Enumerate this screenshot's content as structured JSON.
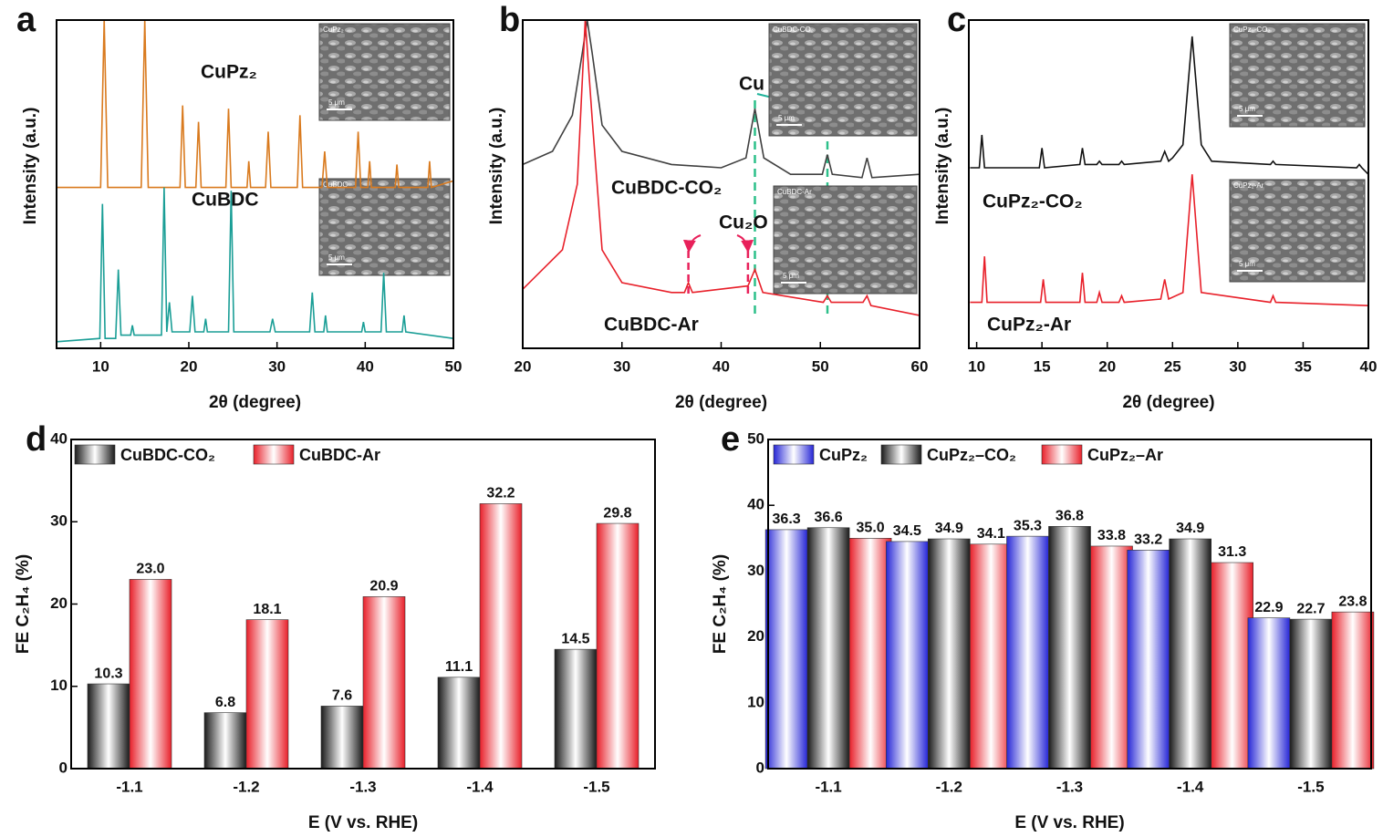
{
  "chart_data": [
    {
      "type": "line",
      "panel": "a",
      "xlabel": "2θ (degree)",
      "ylabel": "Intensity (a.u.)",
      "xlim": [
        5,
        50
      ],
      "xticks": [
        10,
        20,
        30,
        40,
        50
      ],
      "ylim": [
        0,
        100
      ],
      "series": [
        {
          "name": "CuPz₂",
          "color": "#d97a1e",
          "x": [
            5,
            10.0,
            10.4,
            10.8,
            14.6,
            15.0,
            15.4,
            19.0,
            19.3,
            19.6,
            20.8,
            21.1,
            21.4,
            24.2,
            24.5,
            24.8,
            26.6,
            26.8,
            27.0,
            28.7,
            29.0,
            29.3,
            32.3,
            32.6,
            32.9,
            35.1,
            35.4,
            35.7,
            38.9,
            39.2,
            39.5,
            40.3,
            40.5,
            40.7,
            43.4,
            43.6,
            43.8,
            47.1,
            47.3,
            47.5,
            50
          ],
          "values": [
            49,
            49,
            100,
            49,
            49,
            100,
            49,
            49,
            74,
            49,
            49,
            69,
            49,
            49,
            73,
            49,
            49,
            57,
            49,
            49,
            66,
            49,
            49,
            71,
            49,
            49,
            60,
            49,
            49,
            66,
            49,
            49,
            57,
            49,
            49,
            56,
            49,
            49,
            57,
            49,
            51
          ]
        },
        {
          "name": "CuBDC",
          "color": "#1a9e96",
          "x": [
            5,
            9.9,
            10.2,
            10.5,
            11.7,
            12.0,
            12.3,
            13.4,
            13.6,
            13.8,
            16.9,
            17.2,
            17.5,
            17.8,
            18.1,
            20.1,
            20.4,
            20.7,
            21.7,
            21.9,
            22.1,
            24.5,
            24.8,
            25.1,
            29.2,
            29.5,
            29.8,
            33.7,
            34.0,
            34.3,
            35.3,
            35.5,
            35.7,
            39.6,
            39.8,
            40.0,
            41.8,
            42.1,
            42.4,
            44.2,
            44.4,
            44.6,
            50
          ],
          "values": [
            2,
            3,
            44,
            3,
            3,
            24,
            4,
            4,
            7,
            4,
            4,
            49,
            5,
            14,
            5,
            5,
            16,
            5,
            5,
            9,
            5,
            5,
            48,
            5,
            5,
            9,
            5,
            5,
            17,
            5,
            5,
            10,
            5,
            5,
            8,
            5,
            5,
            23,
            5,
            5,
            10,
            5,
            3
          ]
        }
      ],
      "insets": [
        {
          "label": "CuPz₂",
          "scale": "5 μm"
        },
        {
          "label": "CuBDC",
          "scale": "5 μm"
        }
      ]
    },
    {
      "type": "line",
      "panel": "b",
      "xlabel": "2θ (degree)",
      "ylabel": "Intensity (a.u.)",
      "xlim": [
        20,
        60
      ],
      "xticks": [
        20,
        30,
        40,
        50,
        60
      ],
      "ylim": [
        0,
        100
      ],
      "series": [
        {
          "name": "CuBDC-CO₂",
          "color": "#404040",
          "x": [
            20,
            23,
            25,
            26,
            26.5,
            27,
            28,
            30,
            35,
            40,
            42.5,
            43.4,
            44.3,
            47,
            50.2,
            50.7,
            51.2,
            54.2,
            54.7,
            55.2,
            60
          ],
          "values": [
            56,
            60,
            71,
            90,
            100,
            90,
            68,
            60,
            56,
            55,
            58,
            73,
            58,
            53,
            53,
            59,
            53,
            52,
            58,
            52,
            53
          ]
        },
        {
          "name": "CuBDC-Ar",
          "color": "#e8202a",
          "x": [
            20,
            24,
            25.5,
            26.3,
            27,
            28,
            30,
            35,
            36.3,
            36.7,
            37.1,
            42.7,
            43.4,
            44.2,
            50.3,
            50.7,
            51.1,
            54.3,
            54.7,
            55.1,
            60
          ],
          "values": [
            18,
            30,
            50,
            100,
            70,
            30,
            20,
            17,
            17,
            20,
            17,
            19,
            24,
            17,
            14,
            16,
            14,
            14,
            16,
            13,
            10
          ]
        }
      ],
      "annotations": [
        {
          "text": "Cu",
          "color": "#1fb39a"
        },
        {
          "text": "Cu₂O",
          "color": "#e8205a"
        }
      ],
      "insets": [
        {
          "label": "CuBDC-CO₂",
          "scale": "5 μm"
        },
        {
          "label": "CuBDC-Ar",
          "scale": "5 μm"
        }
      ]
    },
    {
      "type": "line",
      "panel": "c",
      "xlabel": "2θ (degree)",
      "ylabel": "Intensity (a.u.)",
      "xlim": [
        9.4,
        40
      ],
      "xticks": [
        10,
        15,
        20,
        25,
        30,
        35,
        40
      ],
      "ylim": [
        0,
        100
      ],
      "series": [
        {
          "name": "CuPz₂-CO₂",
          "color": "#111111",
          "x": [
            9.5,
            10.2,
            10.4,
            10.6,
            14.8,
            15.0,
            15.2,
            17.9,
            18.1,
            18.3,
            19.2,
            19.4,
            19.6,
            20.9,
            21.1,
            21.3,
            24.1,
            24.4,
            24.7,
            25.0,
            25.8,
            26.5,
            27.2,
            28,
            32.5,
            32.7,
            32.9,
            39.1,
            39.3,
            39.5,
            40
          ],
          "values": [
            55,
            55,
            65,
            55,
            55,
            61,
            55,
            56,
            61,
            56,
            56,
            57,
            56,
            56,
            57,
            56,
            57,
            60,
            57,
            58,
            62,
            95,
            62,
            57,
            56,
            57,
            56,
            55,
            56,
            55,
            53
          ]
        },
        {
          "name": "CuPz₂-Ar",
          "color": "#e8202a",
          "x": [
            9.5,
            10.4,
            10.6,
            10.8,
            14.9,
            15.1,
            15.3,
            17.9,
            18.1,
            18.3,
            19.2,
            19.4,
            19.6,
            20.9,
            21.1,
            21.3,
            24.1,
            24.4,
            24.7,
            25.8,
            26.5,
            27.2,
            32.5,
            32.7,
            32.9,
            40
          ],
          "values": [
            14,
            14,
            28,
            14,
            14,
            21,
            14,
            14,
            23,
            14,
            14,
            17,
            14,
            14,
            16,
            14,
            15,
            21,
            15,
            17,
            53,
            17,
            14,
            16,
            14,
            13
          ]
        }
      ],
      "insets": [
        {
          "label": "CuPz₂-CO₂",
          "scale": "5 μm"
        },
        {
          "label": "CuPz₂-Ar",
          "scale": "5 μm"
        }
      ]
    },
    {
      "type": "bar",
      "panel": "d",
      "xlabel": "E (V vs. RHE)",
      "ylabel": "FE C₂H₄ (%)",
      "categories": [
        "-1.1",
        "-1.2",
        "-1.3",
        "-1.4",
        "-1.5"
      ],
      "ylim": [
        0,
        40
      ],
      "yticks": [
        0,
        10,
        20,
        30,
        40
      ],
      "legend": "top-left",
      "series": [
        {
          "name": "CuBDC-CO₂",
          "color": "#1a1a1a",
          "values": [
            10.3,
            6.8,
            7.6,
            11.1,
            14.5
          ],
          "value_labels": [
            "10.3",
            "6.8",
            "7.6",
            "11.1",
            "14.5"
          ]
        },
        {
          "name": "CuBDC-Ar",
          "color": "#e8202a",
          "values": [
            23,
            18.1,
            20.9,
            32.2,
            29.8
          ],
          "value_labels": [
            "23.0",
            "18.1",
            "20.9",
            "32.2",
            "29.8"
          ]
        }
      ]
    },
    {
      "type": "bar",
      "panel": "e",
      "xlabel": "E (V vs. RHE)",
      "ylabel": "FE C₂H₄ (%)",
      "categories": [
        "-1.1",
        "-1.2",
        "-1.3",
        "-1.4",
        "-1.5"
      ],
      "ylim": [
        0,
        50
      ],
      "yticks": [
        0,
        10,
        20,
        30,
        40,
        50
      ],
      "legend": "top-left",
      "series": [
        {
          "name": "CuPz₂",
          "color": "#2626d6",
          "values": [
            36.3,
            34.5,
            35.3,
            33.2,
            22.9
          ],
          "value_labels": [
            "36.3",
            "34.5",
            "35.3",
            "33.2",
            "22.9"
          ]
        },
        {
          "name": "CuPz₂–CO₂",
          "color": "#1a1a1a",
          "values": [
            36.6,
            34.9,
            36.8,
            34.9,
            22.7
          ],
          "value_labels": [
            "36.6",
            "34.9",
            "36.8",
            "34.9",
            "22.7"
          ]
        },
        {
          "name": "CuPz₂–Ar",
          "color": "#e8202a",
          "values": [
            35,
            34.1,
            33.8,
            31.3,
            23.8
          ],
          "value_labels": [
            "35.0",
            "34.1",
            "33.8",
            "31.3",
            "23.8"
          ]
        }
      ]
    }
  ]
}
